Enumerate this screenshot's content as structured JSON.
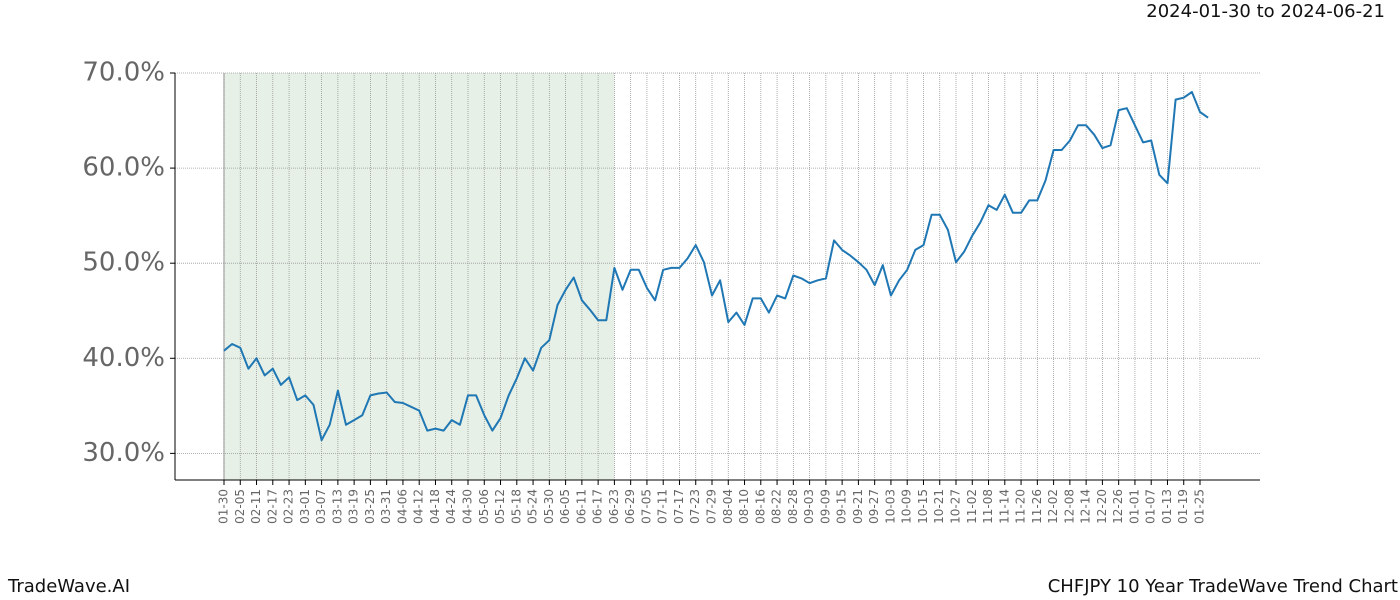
{
  "chart_data": {
    "type": "line",
    "title": "2024-01-30 to 2024-06-21",
    "footer_left": "TradeWave.AI",
    "footer_right": "CHFJPY 10 Year TradeWave Trend Chart",
    "categories": [
      "01-30",
      null,
      "02-05",
      null,
      "02-11",
      null,
      "02-17",
      null,
      "02-23",
      null,
      "03-01",
      null,
      "03-07",
      null,
      "03-13",
      null,
      "03-19",
      null,
      "03-25",
      null,
      "03-31",
      null,
      "04-06",
      null,
      "04-12",
      null,
      "04-18",
      null,
      "04-24",
      null,
      "04-30",
      null,
      "05-06",
      null,
      "05-12",
      null,
      "05-18",
      null,
      "05-24",
      null,
      "05-30",
      null,
      "06-05",
      null,
      "06-11",
      null,
      "06-17",
      null,
      "06-23",
      null,
      "06-29",
      null,
      "07-05",
      null,
      "07-11",
      null,
      "07-17",
      null,
      "07-23",
      null,
      "07-29",
      null,
      "08-04",
      null,
      "08-10",
      null,
      "08-16",
      null,
      "08-22",
      null,
      "08-28",
      null,
      "09-03",
      null,
      "09-09",
      null,
      "09-15",
      null,
      "09-21",
      null,
      "09-27",
      null,
      "10-03",
      null,
      "10-09",
      null,
      "10-15",
      null,
      "10-21",
      null,
      "10-27",
      null,
      "11-02",
      null,
      "11-08",
      null,
      "11-14",
      null,
      "11-20",
      null,
      "11-26",
      null,
      "12-02",
      null,
      "12-08",
      null,
      "12-14",
      null,
      "12-20",
      null,
      "12-26",
      null,
      "01-01",
      null,
      "01-07",
      null,
      "01-13",
      null,
      "01-19",
      null,
      "01-25",
      null
    ],
    "values": [
      40.8,
      41.5,
      41.1,
      38.9,
      40.0,
      38.2,
      38.9,
      37.2,
      38.0,
      35.6,
      36.1,
      35.1,
      31.4,
      33.0,
      36.6,
      33.0,
      33.5,
      34.0,
      36.1,
      36.3,
      36.4,
      35.4,
      35.3,
      34.9,
      34.5,
      32.4,
      32.6,
      32.4,
      33.5,
      33.0,
      36.1,
      36.1,
      34.0,
      32.4,
      33.7,
      36.1,
      37.9,
      40.0,
      38.7,
      41.1,
      41.9,
      45.6,
      47.2,
      48.5,
      46.1,
      45.1,
      44.0,
      44.0,
      49.5,
      47.2,
      49.3,
      49.3,
      47.4,
      46.1,
      49.3,
      49.5,
      49.5,
      50.5,
      51.9,
      50.1,
      46.6,
      48.2,
      43.8,
      44.8,
      43.5,
      46.3,
      46.3,
      44.8,
      46.6,
      46.3,
      48.7,
      48.4,
      47.9,
      48.2,
      48.4,
      52.4,
      51.4,
      50.8,
      50.1,
      49.3,
      47.7,
      49.8,
      46.6,
      48.2,
      49.3,
      51.4,
      51.9,
      55.1,
      55.1,
      53.5,
      50.1,
      51.2,
      52.9,
      54.3,
      56.1,
      55.6,
      57.2,
      55.3,
      55.3,
      56.6,
      56.6,
      58.7,
      61.9,
      61.9,
      62.9,
      64.5,
      64.5,
      63.5,
      62.1,
      62.4,
      66.1,
      66.3,
      64.5,
      62.7,
      62.9,
      59.3,
      58.4,
      67.2,
      67.4,
      68.0,
      65.9,
      65.3
    ],
    "color": "#1f77b4",
    "shaded_categories": [
      0,
      48
    ],
    "shade_color": "#e6f0e6",
    "ylim": [
      27.2,
      70
    ],
    "yticks": [
      {
        "value": 30,
        "label": "30.0%"
      },
      {
        "value": 40,
        "label": "40.0%"
      },
      {
        "value": 50,
        "label": "50.0%"
      },
      {
        "value": 60,
        "label": "60.0%"
      },
      {
        "value": 70,
        "label": "70.0%"
      }
    ],
    "grid": true
  }
}
